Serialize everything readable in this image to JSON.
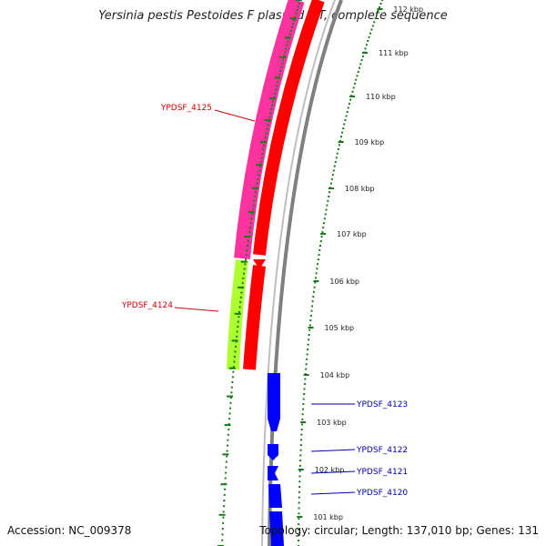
{
  "title": "Yersinia pestis Pestoides F plasmid MT, complete sequence",
  "footer": {
    "accession": "Accession: NC_009378",
    "summary": "Topology: circular; Length: 137,010 bp; Genes: 131"
  },
  "colors": {
    "backbone": "#808080",
    "forward_tick": "#1a7a1a",
    "gene_red": "#ff0000",
    "gene_magenta": "#ff33a0",
    "gene_green": "#adff2f",
    "gene_blue": "#0000ff",
    "label_red": "#cc0000",
    "label_blue": "#0000aa"
  },
  "ticks": [
    {
      "label": "112 kbp"
    },
    {
      "label": "111 kbp"
    },
    {
      "label": "110 kbp"
    },
    {
      "label": "109 kbp"
    },
    {
      "label": "108 kbp"
    },
    {
      "label": "107 kbp"
    },
    {
      "label": "106 kbp"
    },
    {
      "label": "105 kbp"
    },
    {
      "label": "104 kbp"
    },
    {
      "label": "103 kbp"
    },
    {
      "label": "102 kbp"
    },
    {
      "label": "101 kbp"
    }
  ],
  "genes": [
    {
      "name": "YPDSF_4125",
      "color": "red"
    },
    {
      "name": "YPDSF_4124",
      "color": "red"
    },
    {
      "name": "YPDSF_4123",
      "color": "blue"
    },
    {
      "name": "YPDSF_4122",
      "color": "blue"
    },
    {
      "name": "YPDSF_4121",
      "color": "blue"
    },
    {
      "name": "YPDSF_4120",
      "color": "blue"
    }
  ]
}
